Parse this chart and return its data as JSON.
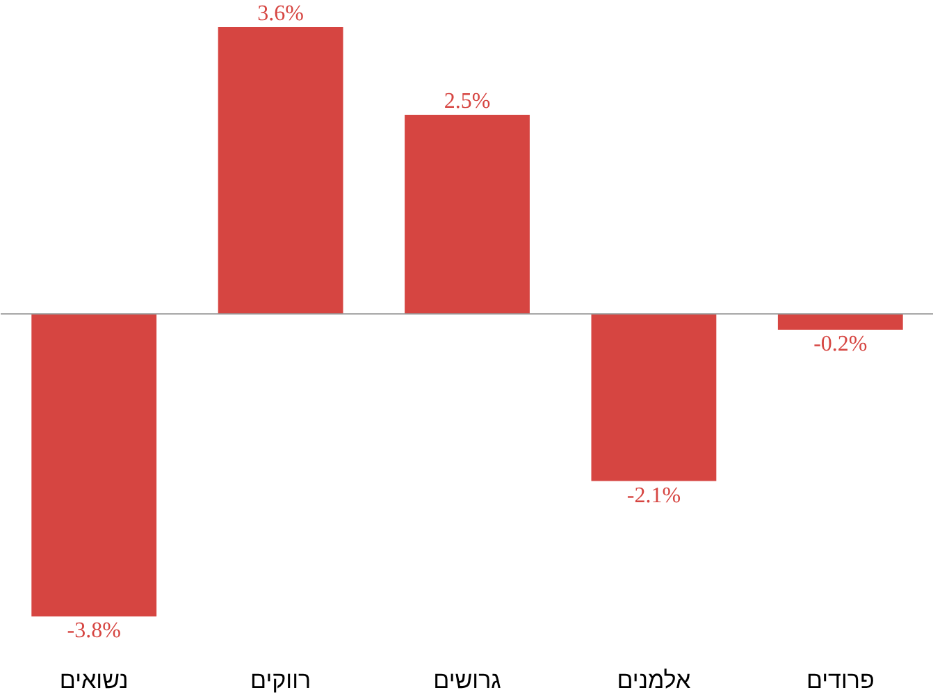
{
  "chart_data": {
    "type": "bar",
    "categories": [
      "נשואים",
      "רווקים",
      "גרושים",
      "אלמנים",
      "פרודים"
    ],
    "values": [
      -3.8,
      3.6,
      2.5,
      -2.1,
      -0.2
    ],
    "color": "#d64541",
    "value_labels": [
      "-3.8%",
      "3.6%",
      "2.5%",
      "-2.1%",
      "-0.2%"
    ]
  }
}
